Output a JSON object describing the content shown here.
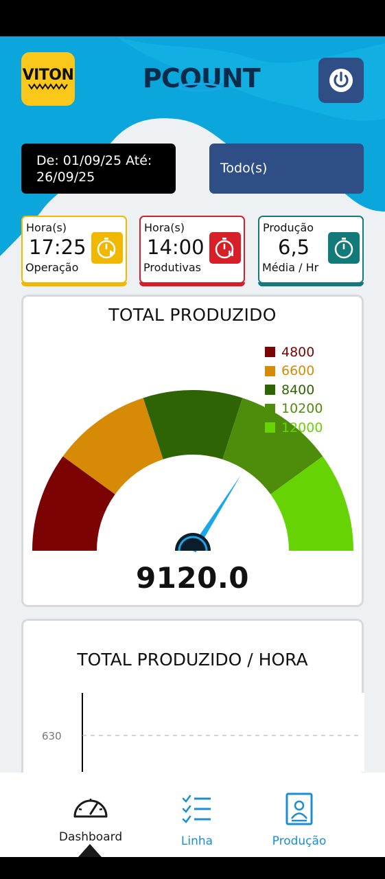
{
  "header": {
    "brand_logo_text": "VITON",
    "app_logo_text": "PCOUNT",
    "power_icon": "power-icon"
  },
  "filters": {
    "date_range": "De: 01/09/25 Até: 26/09/25",
    "selection": "Todo(s)"
  },
  "stats": [
    {
      "top": "Hora(s)",
      "value": "17:25",
      "bottom": "Operação",
      "color": "#f0b800",
      "icon": "timer-play-icon"
    },
    {
      "top": "Hora(s)",
      "value": "14:00",
      "bottom": "Produtivas",
      "color": "#d61f26",
      "icon": "timer-pause-icon"
    },
    {
      "top": "Produção",
      "value": "6,5",
      "bottom": "Média / Hr",
      "color": "#137a7a",
      "icon": "stopwatch-icon"
    }
  ],
  "gauge": {
    "title": "TOTAL PRODUZIDO",
    "value_label": "9120.0",
    "value": 9120,
    "min": 3000,
    "max": 12000,
    "bands": [
      {
        "to": 4800,
        "color": "#7b0303"
      },
      {
        "to": 6600,
        "color": "#d68a05"
      },
      {
        "to": 8400,
        "color": "#2f6405"
      },
      {
        "to": 10200,
        "color": "#4d8d0b"
      },
      {
        "to": 12000,
        "color": "#66d404"
      }
    ],
    "legend": [
      {
        "label": "4800",
        "color": "#7b0303"
      },
      {
        "label": "6600",
        "color": "#d68a05"
      },
      {
        "label": "8400",
        "color": "#2f6405"
      },
      {
        "label": "10200",
        "color": "#4d8d0b"
      },
      {
        "label": "12000",
        "color": "#66d404"
      }
    ]
  },
  "hourly": {
    "title": "TOTAL PRODUZIDO / HORA",
    "y_tick": "630"
  },
  "nav": [
    {
      "label": "Dashboard",
      "icon": "dashboard-gauge-icon",
      "active": true
    },
    {
      "label": "Linha",
      "icon": "checklist-icon",
      "active": false
    },
    {
      "label": "Produção",
      "icon": "badge-icon",
      "active": false
    }
  ],
  "colors": {
    "primary": "#2f4e86",
    "accent_blue": "#1aa7e8",
    "nav_active": "#1a1a1a",
    "nav_inactive": "#1a8ed0"
  }
}
